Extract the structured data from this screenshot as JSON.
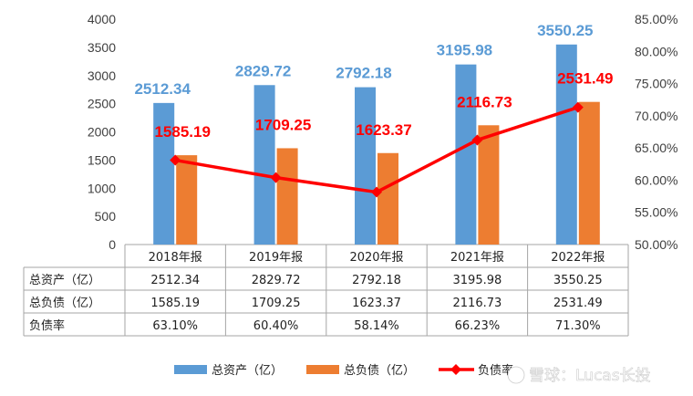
{
  "colors": {
    "total": "#5B9BD5",
    "debt": "#ED7D31",
    "rate": "#FF0000",
    "axis": "#a6a6a6",
    "text": "#404040"
  },
  "chart_data": {
    "type": "bar",
    "categories": [
      "2018年报",
      "2019年报",
      "2020年报",
      "2021年报",
      "2022年报"
    ],
    "series": [
      {
        "name": "总资产（亿）",
        "type": "bar",
        "axis": "left",
        "values": [
          2512.34,
          2829.72,
          2792.18,
          3195.98,
          3550.25
        ],
        "labels": [
          "2512.34",
          "2829.72",
          "2792.18",
          "3195.98",
          "3550.25"
        ]
      },
      {
        "name": "总负债（亿）",
        "type": "bar",
        "axis": "left",
        "values": [
          1585.19,
          1709.25,
          1623.37,
          2116.73,
          2531.49
        ],
        "labels": [
          "1585.19",
          "1709.25",
          "1623.37",
          "2116.73",
          "2531.49"
        ]
      },
      {
        "name": "负债率",
        "type": "line",
        "axis": "right",
        "values": [
          63.1,
          60.4,
          58.14,
          66.23,
          71.3
        ],
        "labels": [
          "63.10%",
          "60.40%",
          "58.14%",
          "66.23%",
          "71.30%"
        ]
      }
    ],
    "y_left": {
      "ylim": [
        0,
        4000
      ],
      "ticks": [
        "0",
        "500",
        "1000",
        "1500",
        "2000",
        "2500",
        "3000",
        "3500",
        "4000"
      ]
    },
    "y_right": {
      "ylim": [
        50,
        85
      ],
      "ticks": [
        "50.00%",
        "55.00%",
        "60.00%",
        "65.00%",
        "70.00%",
        "75.00%",
        "80.00%",
        "85.00%"
      ]
    },
    "grid": false,
    "legend": "bottom",
    "data_table": true
  },
  "watermark": "雪球：Lucas长投"
}
